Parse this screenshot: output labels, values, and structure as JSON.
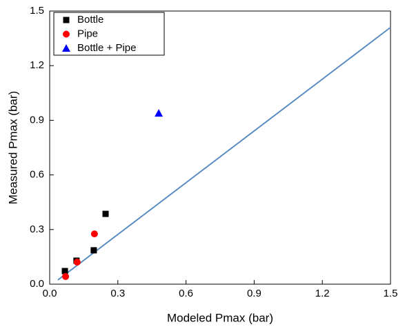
{
  "chart_data": {
    "type": "scatter",
    "x_label": "Modeled Pmax (bar)",
    "y_label": "Measured Pmax (bar)",
    "xlim": [
      0,
      1.5
    ],
    "ylim": [
      0,
      1.5
    ],
    "xticks": [
      {
        "value": 0,
        "label": "0.0"
      },
      0.3,
      0.6,
      0.9,
      1.2,
      1.5
    ],
    "yticks": [
      {
        "value": 0,
        "label": "0.0"
      },
      0.3,
      0.6,
      0.9,
      1.2,
      1.5
    ],
    "legend": "top-left",
    "series": [
      {
        "name": "Bottle",
        "color": "#000000",
        "marker": "square",
        "x": [
          0.067,
          0.118,
          0.194,
          0.246
        ],
        "values": [
          0.072,
          0.129,
          0.186,
          0.386
        ]
      },
      {
        "name": "Pipe",
        "color": "#ff0000",
        "marker": "circle",
        "x": [
          0.07,
          0.121,
          0.197
        ],
        "values": [
          0.042,
          0.121,
          0.276
        ]
      },
      {
        "name": "Bottle + Pipe",
        "color": "#0000ff",
        "marker": "triangle",
        "x": [
          0.48
        ],
        "values": [
          0.939
        ]
      }
    ],
    "fit_line": {
      "color": "#5b8cc2",
      "x": [
        0.036,
        1.5
      ],
      "values": [
        0.023,
        1.41
      ]
    }
  }
}
